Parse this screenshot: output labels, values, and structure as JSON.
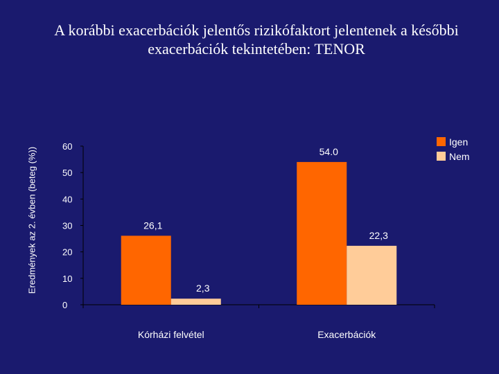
{
  "chart_data": {
    "type": "bar",
    "title": "A korábbi exacerbációk jelentős rizikófaktort jelentenek a későbbi exacerbációk tekintetében: TENOR",
    "ylabel": "Eredmények az 2. évben (beteg (%))",
    "xlabel": "",
    "categories": [
      "Kórházi felvétel",
      "Exacerbációk"
    ],
    "ylim": [
      0,
      60
    ],
    "yticks": [
      0,
      10,
      20,
      30,
      40,
      50,
      60
    ],
    "legend_position": "top-right",
    "series": [
      {
        "name": "Igen",
        "color": "#ff6600",
        "values": [
          26.1,
          54.0
        ],
        "labels": [
          "26,1",
          "54.0"
        ]
      },
      {
        "name": "Nem",
        "color": "#ffcc99",
        "values": [
          2.3,
          22.3
        ],
        "labels": [
          "2,3",
          "22,3"
        ]
      }
    ],
    "plot_background": "#1a1a6e",
    "text_color": "#ffffff"
  }
}
